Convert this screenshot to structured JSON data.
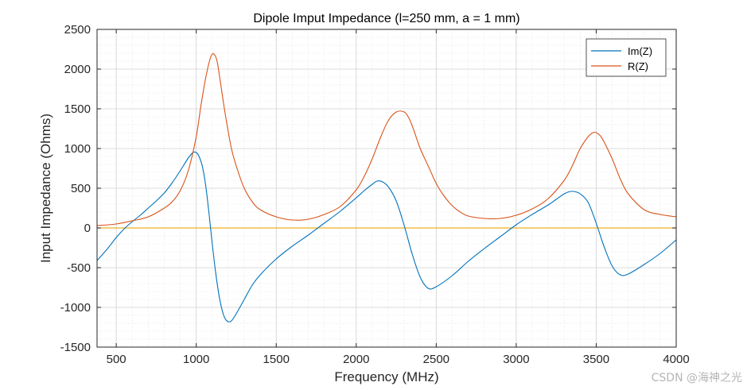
{
  "chart_data": {
    "type": "line",
    "title": "Dipole Imput Impedance (l=250 mm, a = 1 mm)",
    "xlabel": "Frequency (MHz)",
    "ylabel": "Input Impedance (Ohms)",
    "xlim": [
      380,
      4000
    ],
    "ylim": [
      -1500,
      2500
    ],
    "xticks": [
      500,
      1000,
      1500,
      2000,
      2500,
      3000,
      3500,
      4000
    ],
    "yticks": [
      -1500,
      -1000,
      -500,
      0,
      500,
      1000,
      1500,
      2000,
      2500
    ],
    "grid": true,
    "minor_grid": true,
    "legend_position": "top-right",
    "series": [
      {
        "name": "Im(Z)",
        "color": "#0072BD",
        "x": [
          380,
          450,
          500,
          550,
          600,
          650,
          700,
          750,
          800,
          850,
          900,
          950,
          980,
          1000,
          1020,
          1040,
          1060,
          1080,
          1100,
          1120,
          1140,
          1160,
          1180,
          1200,
          1220,
          1250,
          1300,
          1350,
          1400,
          1500,
          1600,
          1700,
          1800,
          1900,
          2000,
          2050,
          2100,
          2130,
          2160,
          2200,
          2250,
          2300,
          2350,
          2400,
          2450,
          2500,
          2600,
          2700,
          2800,
          2900,
          3000,
          3100,
          3200,
          3250,
          3300,
          3330,
          3360,
          3400,
          3450,
          3500,
          3550,
          3600,
          3650,
          3700,
          3800,
          3900,
          4000
        ],
        "y": [
          -410,
          -250,
          -120,
          -10,
          80,
          160,
          250,
          340,
          440,
          570,
          720,
          880,
          950,
          950,
          890,
          760,
          520,
          180,
          -200,
          -540,
          -820,
          -1020,
          -1140,
          -1180,
          -1170,
          -1080,
          -900,
          -720,
          -590,
          -390,
          -230,
          -90,
          60,
          210,
          380,
          470,
          550,
          590,
          585,
          520,
          340,
          30,
          -330,
          -620,
          -760,
          -740,
          -600,
          -420,
          -260,
          -110,
          40,
          170,
          290,
          360,
          430,
          455,
          460,
          430,
          320,
          60,
          -240,
          -480,
          -590,
          -580,
          -460,
          -320,
          -150
        ]
      },
      {
        "name": "R(Z)",
        "color": "#D95319",
        "x": [
          380,
          500,
          600,
          700,
          800,
          850,
          900,
          950,
          1000,
          1030,
          1060,
          1090,
          1110,
          1130,
          1150,
          1180,
          1220,
          1260,
          1300,
          1350,
          1400,
          1500,
          1600,
          1700,
          1800,
          1900,
          2000,
          2050,
          2100,
          2150,
          2200,
          2250,
          2300,
          2330,
          2360,
          2400,
          2450,
          2500,
          2550,
          2600,
          2650,
          2700,
          2800,
          2900,
          3000,
          3100,
          3200,
          3300,
          3350,
          3400,
          3450,
          3480,
          3500,
          3530,
          3560,
          3600,
          3650,
          3700,
          3800,
          3900,
          4000
        ],
        "y": [
          30,
          50,
          90,
          140,
          250,
          330,
          470,
          720,
          1150,
          1550,
          1900,
          2150,
          2190,
          2100,
          1850,
          1450,
          1000,
          720,
          500,
          330,
          230,
          140,
          100,
          110,
          170,
          270,
          480,
          650,
          870,
          1130,
          1350,
          1460,
          1460,
          1380,
          1230,
          1000,
          780,
          560,
          400,
          280,
          200,
          150,
          120,
          120,
          160,
          240,
          370,
          600,
          780,
          1000,
          1150,
          1200,
          1200,
          1150,
          1040,
          870,
          620,
          430,
          230,
          170,
          140
        ]
      }
    ],
    "reference_line": {
      "y": 0,
      "color": "#EDB120"
    }
  },
  "watermark": "CSDN @海神之光"
}
